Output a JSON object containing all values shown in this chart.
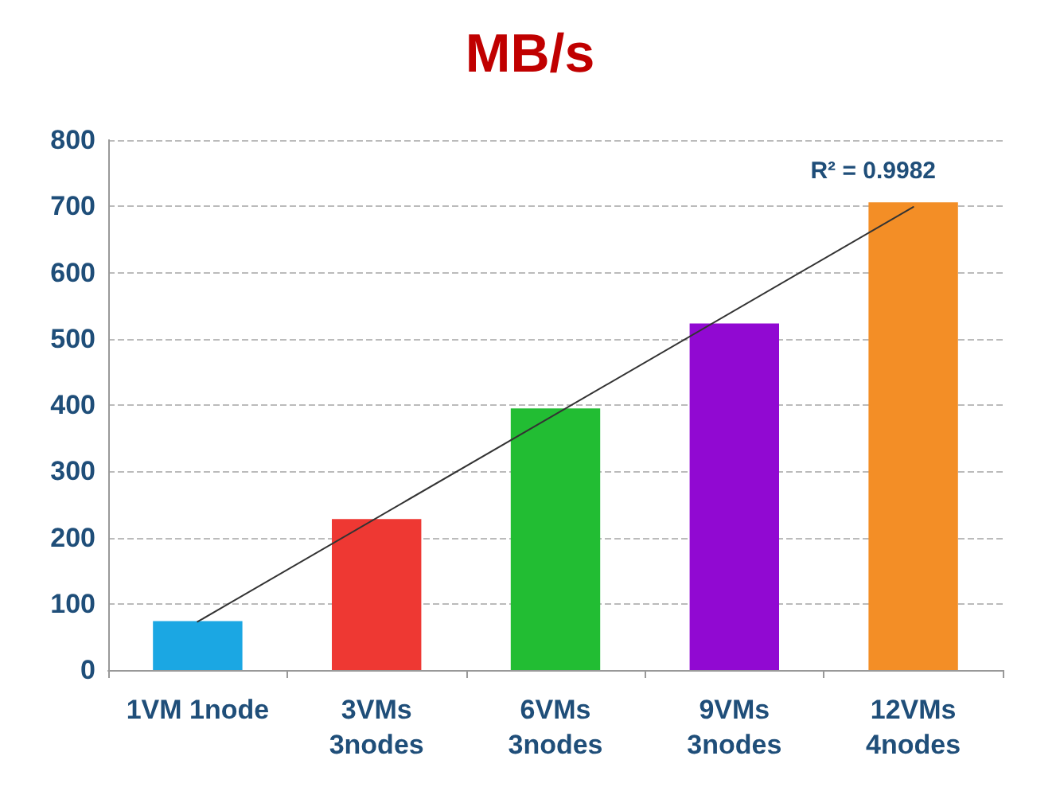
{
  "chart_data": {
    "type": "bar",
    "title": "MB/s",
    "categories": [
      "1VM 1node",
      "3VMs\n3nodes",
      "6VMs\n3nodes",
      "9VMs\n3nodes",
      "12VMs\n4nodes"
    ],
    "series": [
      {
        "values": [
          74,
          228,
          395,
          523,
          706
        ],
        "colors": [
          "#1ba7e3",
          "#ee3833",
          "#22bd33",
          "#9109d2",
          "#f38e26"
        ]
      },
      {
        "type": "line",
        "color": "#333333",
        "x": [
          "1VM 1node",
          "12VMs\n4nodes"
        ],
        "values": [
          73,
          699
        ]
      }
    ],
    "ylim": [
      0,
      800
    ],
    "yticks": [
      0,
      100,
      200,
      300,
      400,
      500,
      600,
      700,
      800
    ],
    "grid": "y",
    "marker": "none",
    "line_style": "solid",
    "annotations": [
      "R² = 0.9982"
    ]
  }
}
